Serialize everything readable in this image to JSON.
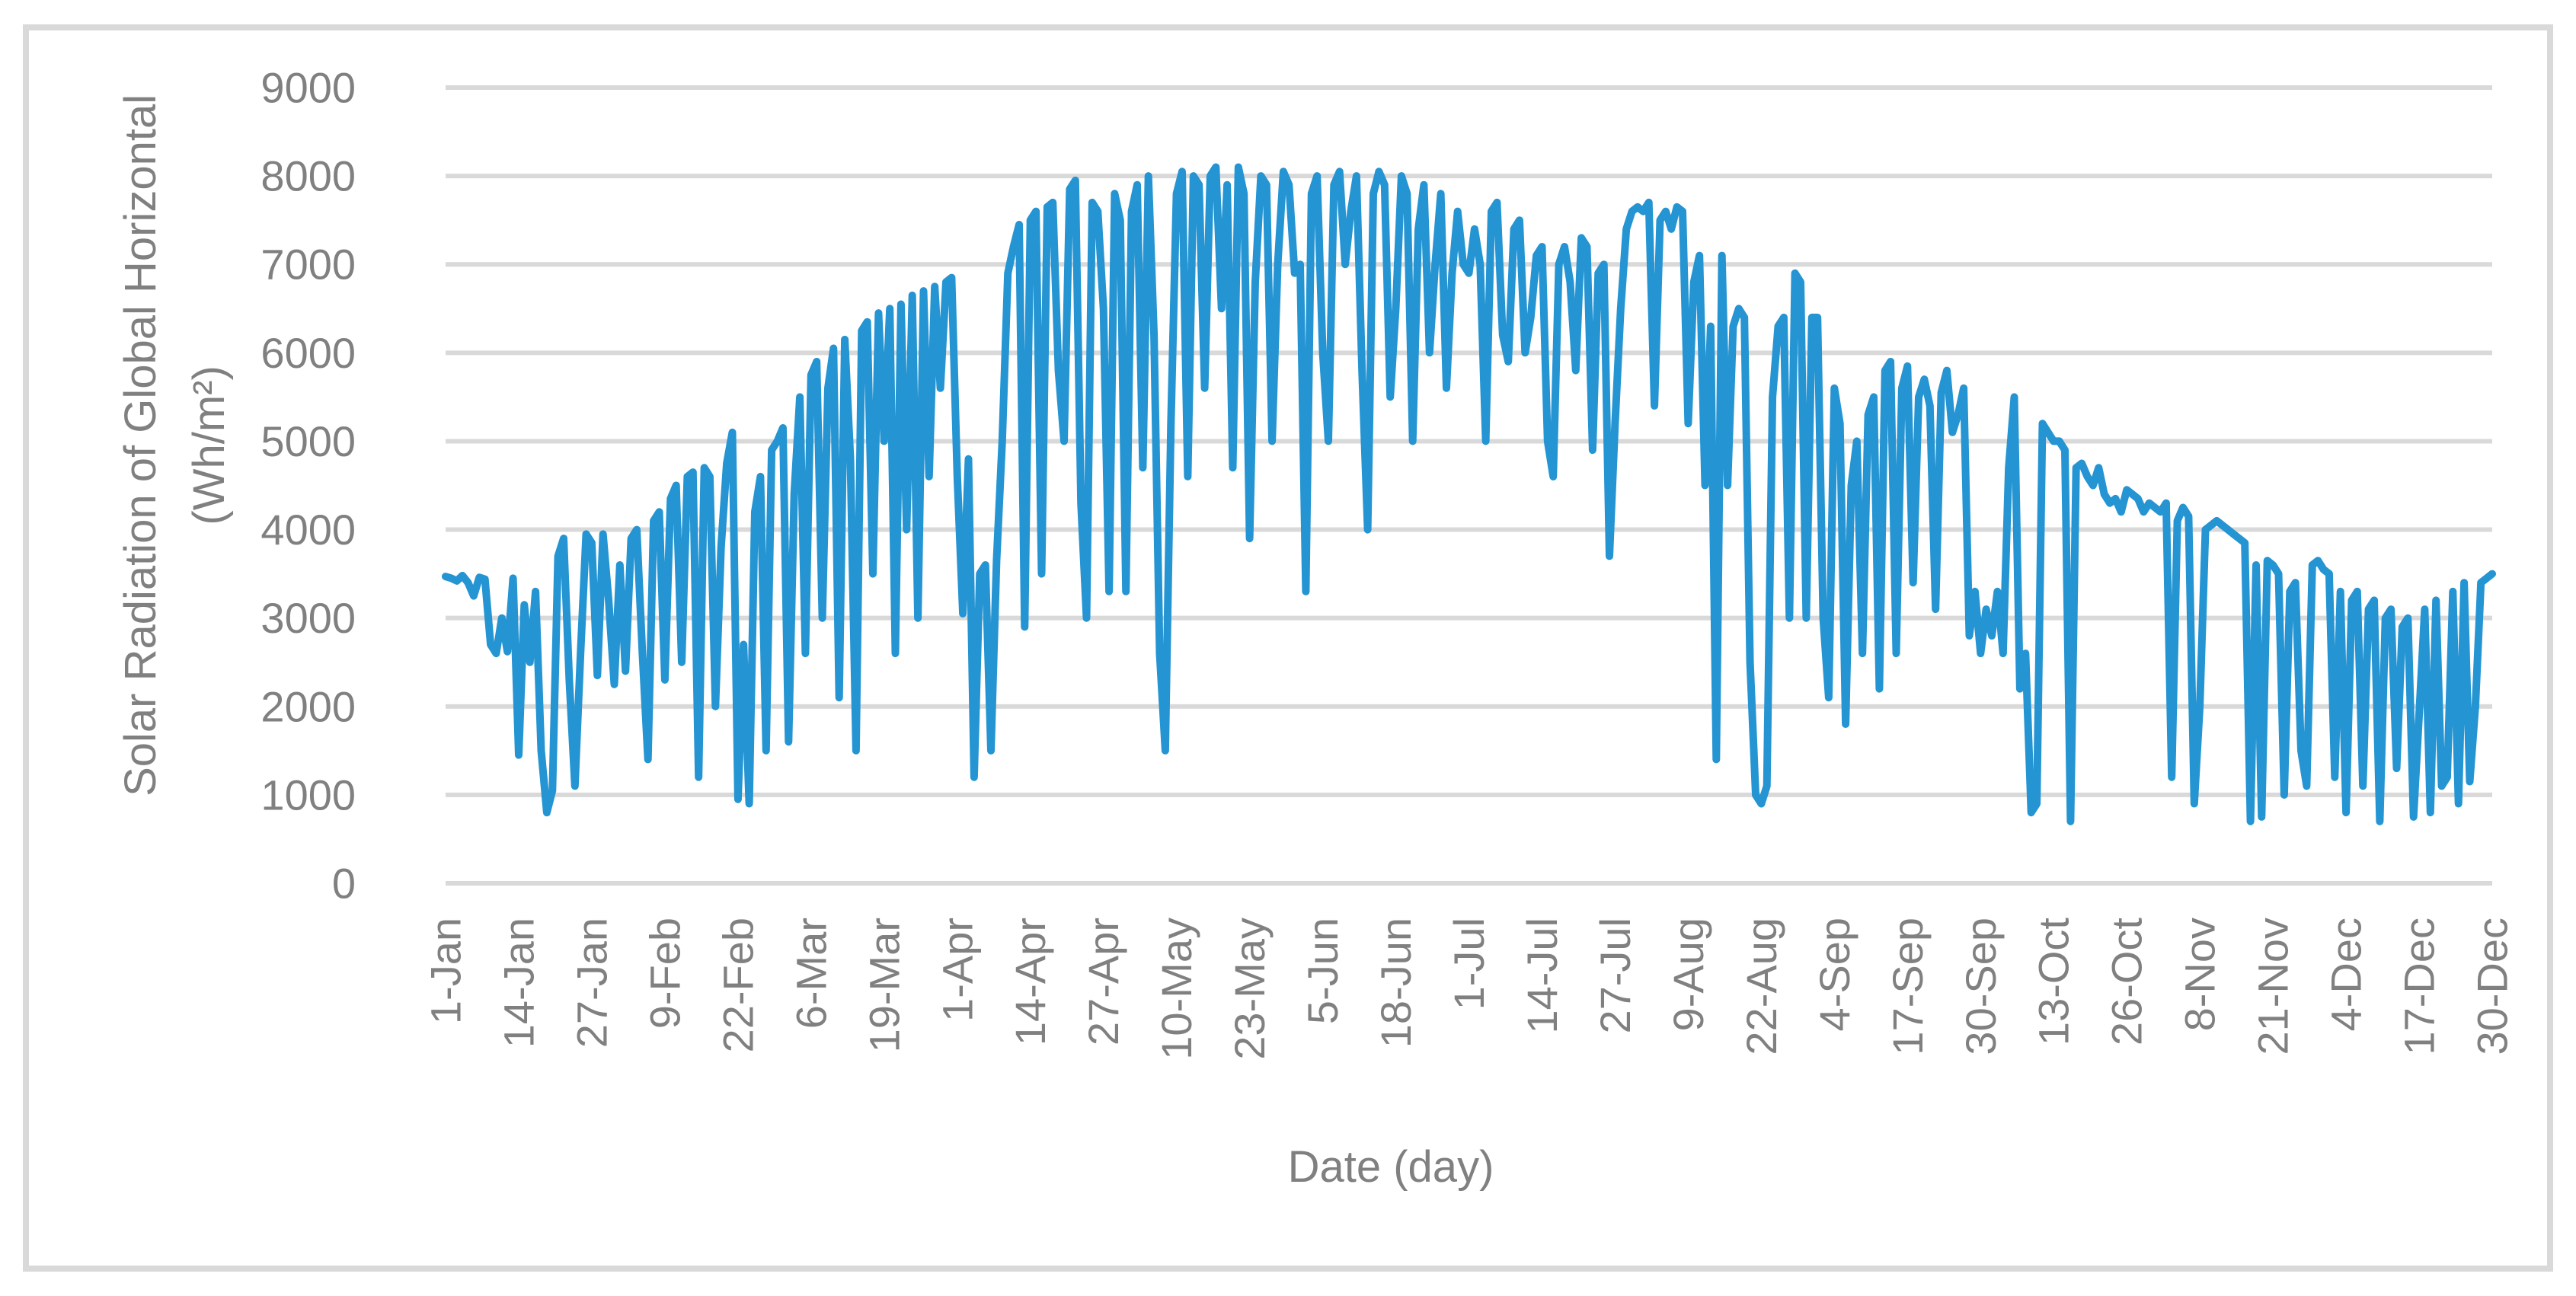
{
  "chart_data": {
    "type": "line",
    "title": "",
    "xlabel": "Date (day)",
    "ylabel_line1": "Solar Radiation of Global Horizontal",
    "ylabel_line2": "(Wh/m²)",
    "ylim": [
      0,
      9000
    ],
    "y_ticks": [
      0,
      1000,
      2000,
      3000,
      4000,
      5000,
      6000,
      7000,
      8000,
      9000
    ],
    "x_tick_labels": [
      "1-Jan",
      "14-Jan",
      "27-Jan",
      "9-Feb",
      "22-Feb",
      "6-Mar",
      "19-Mar",
      "1-Apr",
      "14-Apr",
      "27-Apr",
      "10-May",
      "23-May",
      "5-Jun",
      "18-Jun",
      "1-Jul",
      "14-Jul",
      "27-Jul",
      "9-Aug",
      "22-Aug",
      "4-Sep",
      "17-Sep",
      "30-Sep",
      "13-Oct",
      "26-Oct",
      "8-Nov",
      "21-Nov",
      "4-Dec",
      "17-Dec",
      "30-Dec"
    ],
    "x_tick_interval_days": 13,
    "n_points": 365,
    "grid": true,
    "legend": false,
    "line_color": "#2494D2",
    "grid_color": "#D9D9D9",
    "text_color": "#808080",
    "frame_color": "#D9D9D9",
    "values": [
      3470,
      3450,
      3420,
      3480,
      3400,
      3250,
      3460,
      3440,
      2700,
      2600,
      3000,
      2620,
      3450,
      1450,
      3150,
      2500,
      3300,
      1500,
      800,
      1050,
      3700,
      3900,
      2300,
      1100,
      2600,
      3950,
      3850,
      2350,
      3950,
      3200,
      2250,
      3600,
      2400,
      3900,
      4000,
      2600,
      1400,
      4100,
      4200,
      2300,
      4350,
      4500,
      2500,
      4600,
      4650,
      1200,
      4700,
      4600,
      2000,
      3800,
      4750,
      5100,
      950,
      2700,
      900,
      4200,
      4600,
      1500,
      4900,
      5000,
      5150,
      1600,
      4400,
      5500,
      2600,
      5750,
      5900,
      3000,
      5600,
      6050,
      2100,
      6150,
      4800,
      1500,
      6250,
      6350,
      3500,
      6450,
      5000,
      6500,
      2600,
      6550,
      4000,
      6650,
      3000,
      6700,
      4600,
      6750,
      5600,
      6800,
      6850,
      4600,
      3050,
      4800,
      1200,
      3500,
      3600,
      1500,
      3650,
      5000,
      6900,
      7200,
      7450,
      2900,
      7500,
      7600,
      3500,
      7650,
      7700,
      5800,
      5000,
      7850,
      7950,
      4300,
      3000,
      7700,
      7600,
      6500,
      3300,
      7800,
      7500,
      3300,
      7600,
      7900,
      4700,
      8000,
      6200,
      2600,
      1500,
      5200,
      7800,
      8050,
      4600,
      8000,
      7900,
      5600,
      8000,
      8100,
      6500,
      7900,
      4700,
      8100,
      7800,
      3900,
      6800,
      8000,
      7900,
      5000,
      7000,
      8050,
      7900,
      6900,
      7000,
      3300,
      7800,
      8000,
      6000,
      5000,
      7900,
      8050,
      7000,
      7600,
      8000,
      5800,
      4000,
      7800,
      8050,
      7900,
      5500,
      6500,
      8000,
      7800,
      5000,
      7400,
      7900,
      6000,
      7000,
      7800,
      5600,
      6900,
      7600,
      7000,
      6900,
      7400,
      7000,
      5000,
      7600,
      7700,
      6200,
      5900,
      7400,
      7500,
      6000,
      6400,
      7100,
      7200,
      5000,
      4600,
      7000,
      7200,
      6800,
      5800,
      7300,
      7200,
      4900,
      6900,
      7000,
      3700,
      5200,
      6500,
      7400,
      7600,
      7650,
      7600,
      7700,
      5400,
      7500,
      7600,
      7400,
      7650,
      7600,
      5200,
      6800,
      7100,
      4500,
      6300,
      1400,
      7100,
      4500,
      6300,
      6500,
      6400,
      2500,
      1000,
      900,
      1100,
      5500,
      6300,
      6400,
      3000,
      6900,
      6800,
      3000,
      6400,
      6400,
      3000,
      2100,
      5600,
      5200,
      1800,
      4500,
      5000,
      2600,
      5300,
      5500,
      2200,
      5800,
      5900,
      2600,
      5600,
      5850,
      3400,
      5500,
      5700,
      5400,
      3100,
      5550,
      5800,
      5100,
      5300,
      5600,
      2800,
      3300,
      2600,
      3100,
      2800,
      3300,
      2600,
      4700,
      5500,
      2200,
      2600,
      800,
      900,
      5200,
      5100,
      5000,
      5000,
      4900,
      700,
      4700,
      4750,
      4600,
      4500,
      4700,
      4400,
      4300,
      4350,
      4200,
      4450,
      4400,
      4350,
      4200,
      4300,
      4250,
      4200,
      4300,
      1200,
      4100,
      4250,
      4150,
      900,
      2000,
      4000,
      4050,
      4100,
      4050,
      4000,
      3950,
      3900,
      3850,
      700,
      3600,
      750,
      3650,
      3600,
      3500,
      1000,
      3300,
      3400,
      1500,
      1100,
      3600,
      3650,
      3550,
      3500,
      1200,
      3300,
      800,
      3200,
      3300,
      1100,
      3100,
      3200,
      700,
      3000,
      3100,
      1300,
      2900,
      3000,
      750,
      1900,
      3100,
      800,
      3200,
      1100,
      1200,
      3300,
      900,
      3400,
      1150,
      2000,
      3400,
      3450,
      3500
    ]
  }
}
